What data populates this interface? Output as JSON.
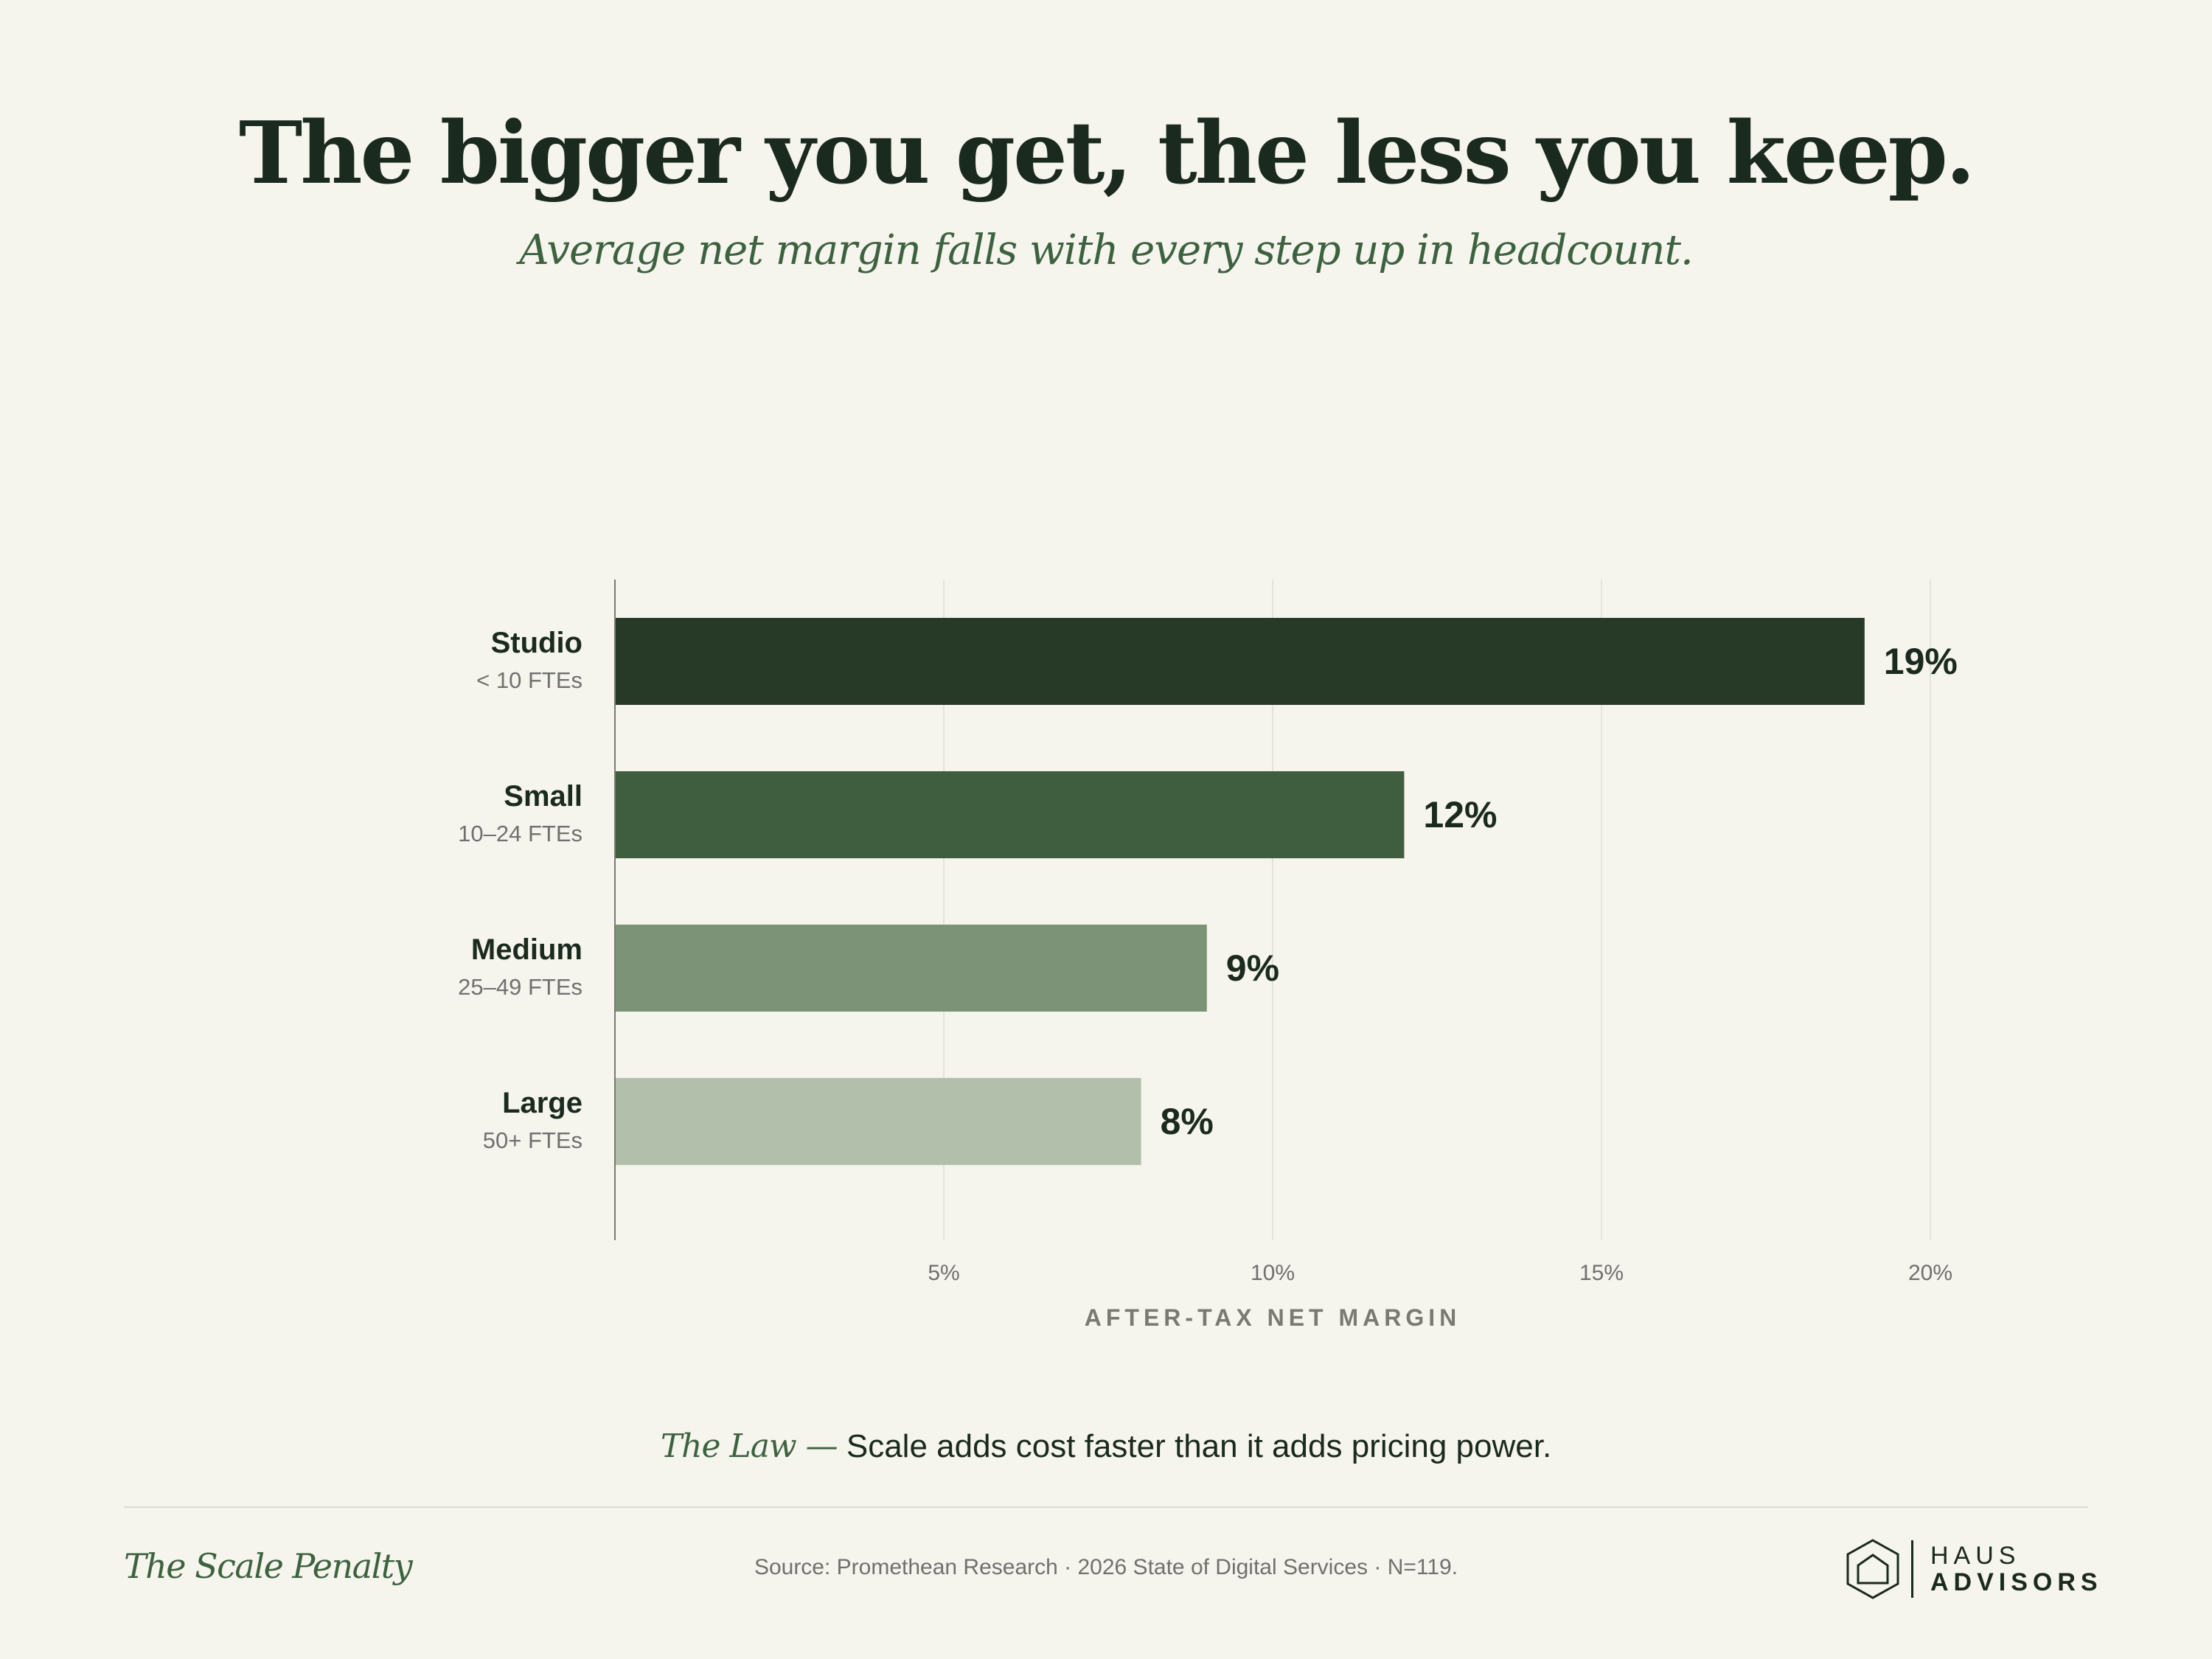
{
  "header": {
    "title": "The bigger you get, the less you keep.",
    "subtitle": "Average net margin falls with every step up in headcount."
  },
  "chart_data": {
    "type": "bar",
    "orientation": "horizontal",
    "categories": [
      "Studio",
      "Small",
      "Medium",
      "Large"
    ],
    "category_sublabels": [
      "< 10 FTEs",
      "10–24 FTEs",
      "25–49 FTEs",
      "50+ FTEs"
    ],
    "values": [
      19,
      12,
      9,
      8
    ],
    "value_labels": [
      "19%",
      "12%",
      "9%",
      "8%"
    ],
    "bar_colors": [
      "#263a27",
      "#3f5e40",
      "#7d9377",
      "#b2bfaa"
    ],
    "xlim": [
      0,
      20
    ],
    "xticks": [
      5,
      10,
      15,
      20
    ],
    "xtick_labels": [
      "5%",
      "10%",
      "15%",
      "20%"
    ],
    "xlabel": "AFTER-TAX NET MARGIN",
    "grid": "vertical"
  },
  "law": {
    "lead": "The Law —",
    "text": "Scale adds cost faster than it adds pricing power."
  },
  "footer": {
    "title": "The Scale Penalty",
    "source": "Source: Promethean Research · 2026 State of Digital Services · N=119.",
    "logo_line1": "HAUS",
    "logo_line2": "ADVISORS",
    "logo_icon": "house-hexagon-icon"
  },
  "colors": {
    "background": "#f5f4ed",
    "ink": "#1b2a1e",
    "accent": "#3d6240",
    "muted": "#707070",
    "grid": "#e4e3dc"
  }
}
